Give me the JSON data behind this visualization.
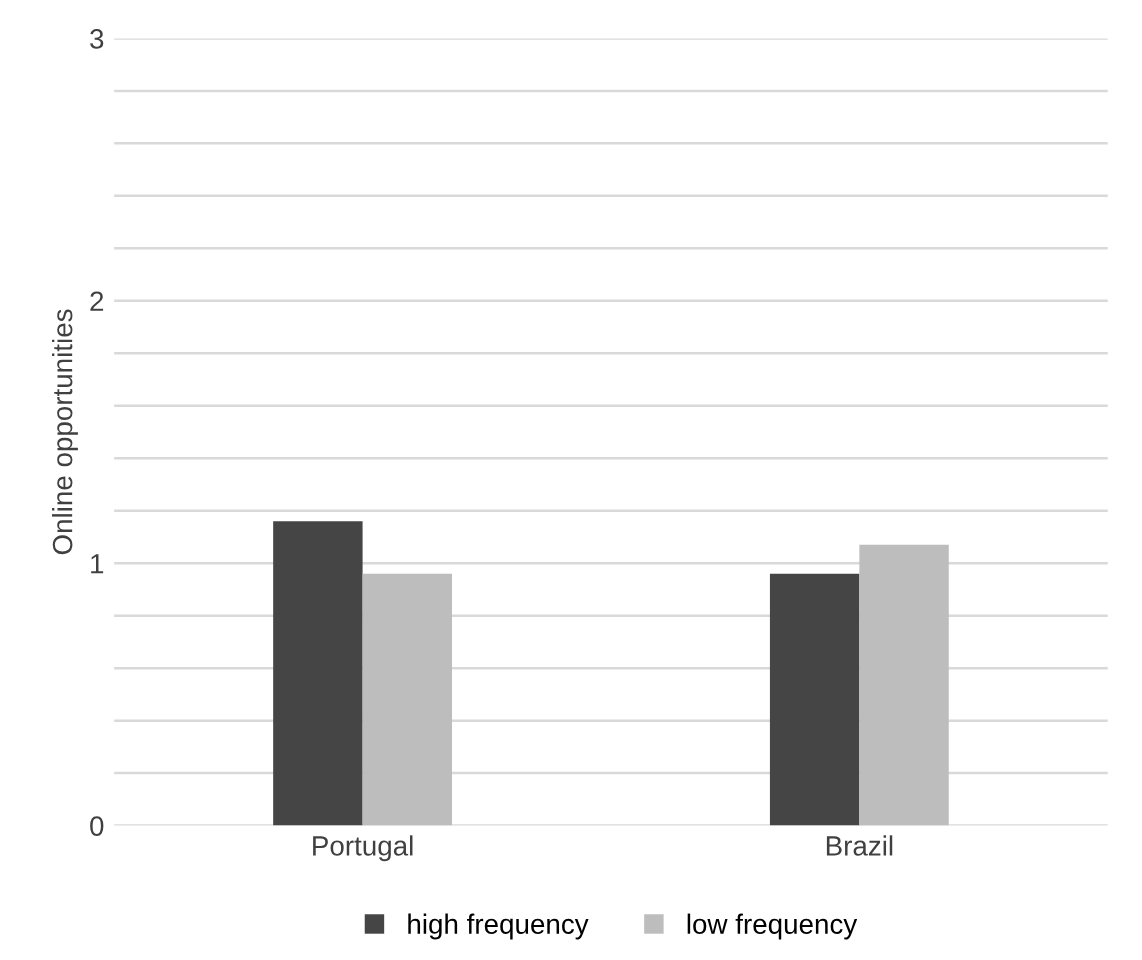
{
  "chart_data": {
    "type": "bar",
    "ylabel": "Online opportunities",
    "categories": [
      "Portugal",
      "Brazil"
    ],
    "series": [
      {
        "name": "high frequency",
        "color": "#454545",
        "values": [
          1.16,
          0.96
        ]
      },
      {
        "name": "low frequency",
        "color": "#bdbdbd",
        "values": [
          0.96,
          1.07
        ]
      }
    ],
    "ylim": [
      0,
      3
    ],
    "yticks": [
      0,
      {
        "value": 0.2,
        "label": null
      },
      {
        "value": 0.4,
        "label": null
      },
      {
        "value": 0.6,
        "label": null
      },
      {
        "value": 0.8,
        "label": null
      },
      1,
      {
        "value": 1.2,
        "label": null
      },
      {
        "value": 1.4,
        "label": null
      },
      {
        "value": 1.6,
        "label": null
      },
      {
        "value": 1.8,
        "label": null
      },
      2,
      {
        "value": 2.2,
        "label": null
      },
      {
        "value": 2.4,
        "label": null
      },
      {
        "value": 2.6,
        "label": null
      },
      {
        "value": 2.8,
        "label": null
      },
      3
    ],
    "grid": "y",
    "legend": "bottom"
  }
}
